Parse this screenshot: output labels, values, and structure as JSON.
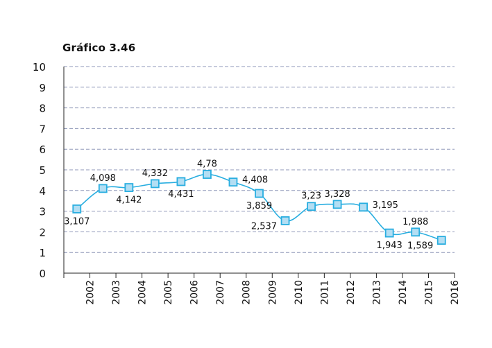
{
  "chart_data": {
    "type": "line",
    "title": "Gráfico 3.46",
    "xlabel": "",
    "ylabel": "",
    "categories": [
      "2002",
      "2003",
      "2004",
      "2005",
      "2006",
      "2007",
      "2008",
      "2009",
      "2010",
      "2011",
      "2012",
      "2013",
      "2014",
      "2015",
      "2016"
    ],
    "ylim": [
      0,
      10
    ],
    "yticks": [
      0,
      1,
      2,
      3,
      4,
      5,
      6,
      7,
      8,
      9,
      10
    ],
    "grid": true,
    "series": [
      {
        "values": [
          3.107,
          4.098,
          4.142,
          4.332,
          4.431,
          4.78,
          4.408,
          3.859,
          2.537,
          3.23,
          3.328,
          3.195,
          1.943,
          1.988,
          1.589
        ],
        "labels": [
          "3,107",
          "4,098",
          "4,142",
          "4,332",
          "4,431",
          "4,78",
          "4,408",
          "3,859",
          "2,537",
          "3,23",
          "3,328",
          "3,195",
          "1,943",
          "1,988",
          "1,589"
        ],
        "label_side": [
          "below",
          "above",
          "below",
          "above",
          "below",
          "above",
          "right",
          "below",
          "left",
          "above",
          "above",
          "right",
          "below",
          "above",
          "left"
        ]
      }
    ],
    "colors": {
      "line": "#29aee0",
      "marker_fill": "#b3def3",
      "marker_stroke": "#29aee0",
      "grid": "#8f97b8",
      "axis": "#222222"
    }
  }
}
